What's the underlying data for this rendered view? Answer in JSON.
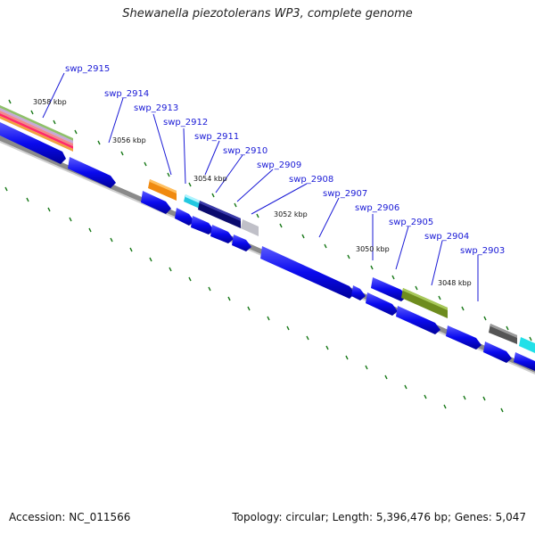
{
  "title": "Shewanella piezotolerans WP3, complete genome",
  "footer": {
    "accession": "Accession: NC_011566",
    "topology": "Topology: circular; Length: 5,396,476 bp; Genes: 5,047"
  },
  "gene_labels": [
    "swp_2915",
    "swp_2914",
    "swp_2913",
    "swp_2912",
    "swp_2911",
    "swp_2910",
    "swp_2909",
    "swp_2908",
    "swp_2907",
    "swp_2906",
    "swp_2905",
    "swp_2904",
    "swp_2903"
  ],
  "kbp_labels": [
    "3058 kbp",
    "3056 kbp",
    "3054 kbp",
    "3052 kbp",
    "3050 kbp",
    "3048 kbp"
  ],
  "colors": {
    "gene": "#0a0aee",
    "orange": "#f08a10",
    "navy": "#0b0b6e",
    "olive": "#6e8c1e",
    "grey": "#bbbbbb",
    "dark_grey": "#555555",
    "cyan": "#22e0e8",
    "tick": "#1a7a1a",
    "backbone": "#777777"
  }
}
